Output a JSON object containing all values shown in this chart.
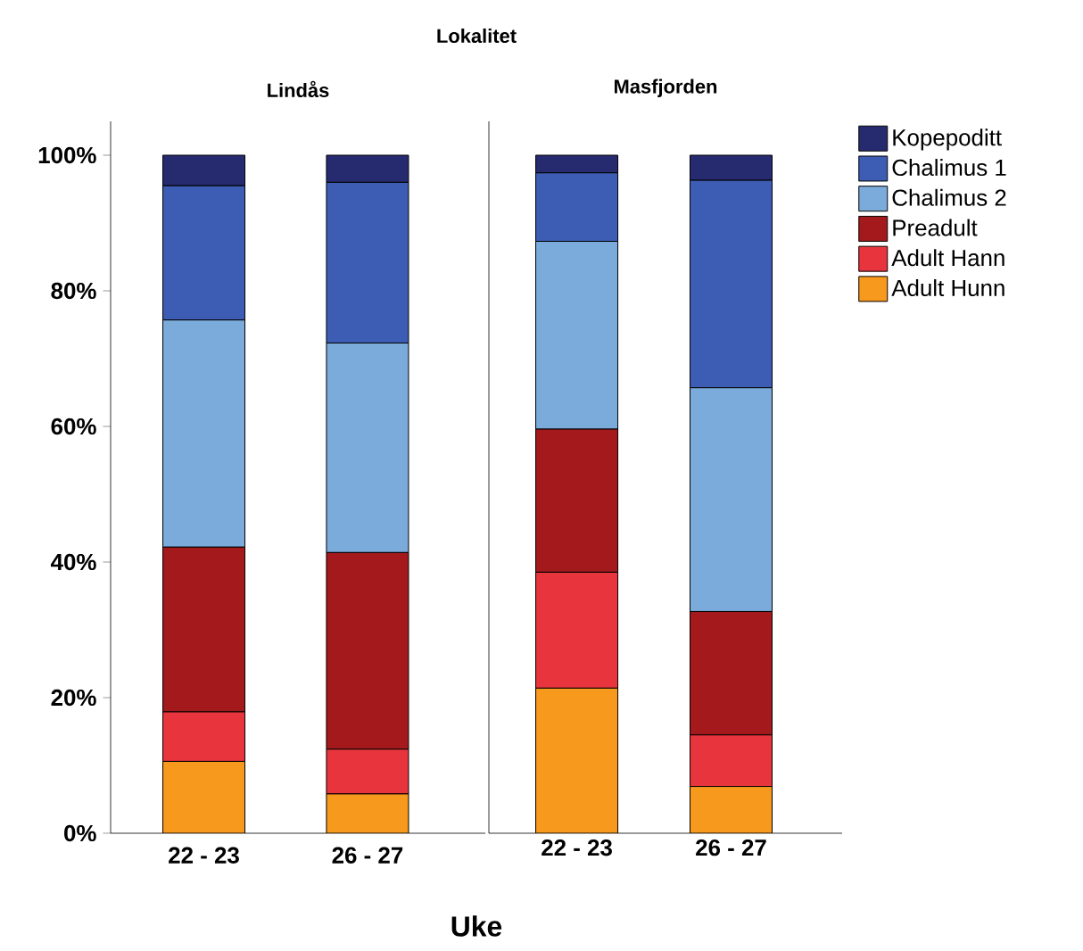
{
  "chart_data": [
    {
      "type": "bar",
      "stacked": true,
      "title": "Lindås",
      "xlabel": "Uke",
      "annotations": [
        "Lokalitet"
      ],
      "categories": [
        "22 - 23",
        "26 - 27"
      ],
      "ylim": [
        0,
        105
      ],
      "yticks": [
        {
          "value": 0,
          "label": "0%"
        },
        {
          "value": 20,
          "label": "20%"
        },
        {
          "value": 40,
          "label": "40%"
        },
        {
          "value": 60,
          "label": "60%"
        },
        {
          "value": 80,
          "label": "80%"
        },
        {
          "value": 100,
          "label": "100%"
        }
      ],
      "series": [
        {
          "color": "#f7991c",
          "values": [
            10.6,
            5.8
          ]
        },
        {
          "color": "#e8353d",
          "values": [
            7.3,
            6.6
          ]
        },
        {
          "color": "#a3191c",
          "values": [
            24.3,
            29.0
          ]
        },
        {
          "color": "#7babda",
          "values": [
            33.5,
            30.9
          ]
        },
        {
          "color": "#3d5cb3",
          "values": [
            19.8,
            23.7
          ]
        },
        {
          "color": "#262a6e",
          "values": [
            4.5,
            4.0
          ]
        }
      ]
    },
    {
      "type": "bar",
      "stacked": true,
      "title": "Masfjorden",
      "legend": "right",
      "tick_labels": "x",
      "categories": [
        "22 - 23",
        "26 - 27"
      ],
      "ylim": [
        0,
        105
      ],
      "series": [
        {
          "name": "Adult Hunn",
          "color": "#f7991c",
          "values": [
            21.4,
            6.9
          ]
        },
        {
          "name": "Adult Hann",
          "color": "#e8353d",
          "values": [
            17.1,
            7.6
          ]
        },
        {
          "name": "Preadult",
          "color": "#a3191c",
          "values": [
            21.1,
            18.2
          ]
        },
        {
          "name": "Chalimus 2",
          "color": "#7babda",
          "values": [
            27.7,
            33.0
          ]
        },
        {
          "name": "Chalimus 1",
          "color": "#3d5cb3",
          "values": [
            10.1,
            30.6
          ]
        },
        {
          "name": "Kopepoditt",
          "color": "#262a6e",
          "values": [
            2.6,
            3.7
          ]
        }
      ]
    }
  ]
}
